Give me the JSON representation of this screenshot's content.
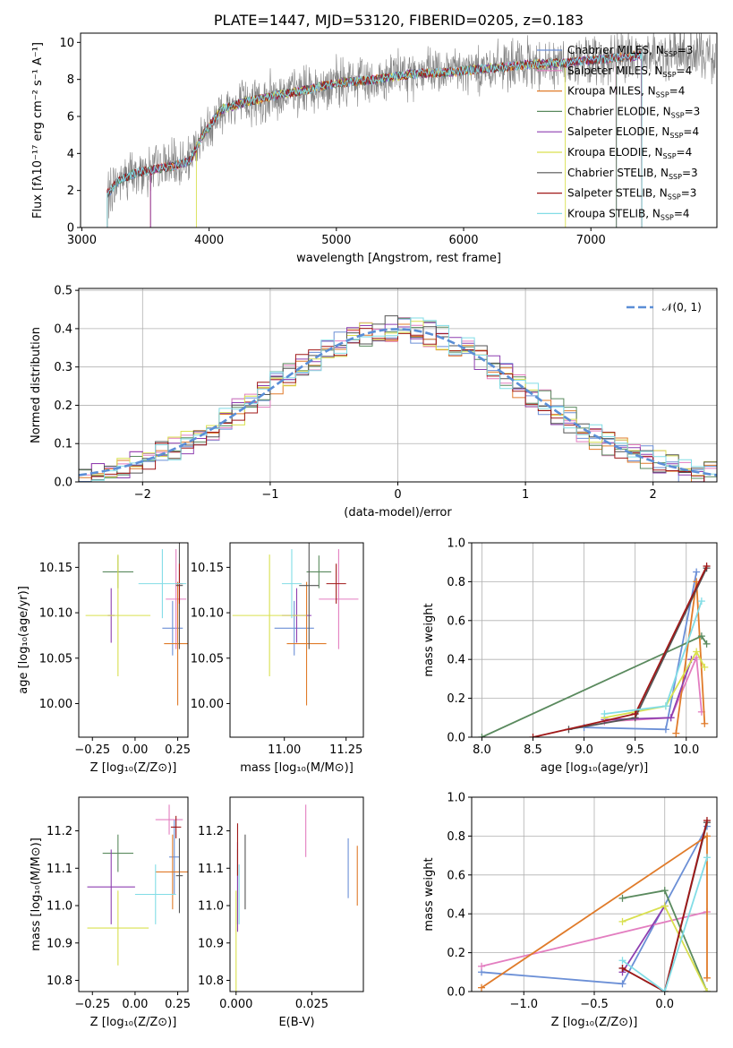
{
  "colors": {
    "c0": "#6b8fd6",
    "c1": "#e37ec0",
    "c2": "#e07b2a",
    "c3": "#5a8a5e",
    "c4": "#8e3fb0",
    "c5": "#d9e04f",
    "c6": "#555555",
    "c7": "#a01818",
    "c8": "#82dde6",
    "data": "#808080",
    "normal": "#5b8ed6"
  },
  "chart_data": [
    {
      "id": "spectrum",
      "type": "line",
      "title": "PLATE=1447, MJD=53120, FIBERID=0205, z=0.183",
      "xlabel": "wavelength [Angstrom, rest frame]",
      "ylabel": "Flux [fλ10⁻¹⁷ erg cm⁻² s⁻¹ A⁻¹]",
      "xlim": [
        2990,
        7990
      ],
      "ylim": [
        0,
        10.5
      ],
      "xticks": [
        3000,
        4000,
        5000,
        6000,
        7000
      ],
      "yticks": [
        0,
        2,
        4,
        6,
        8,
        10
      ],
      "legend_position": "top-right",
      "legend": [
        {
          "label": "Chabrier MILES, N",
          "sub": "SSP",
          "tail": "=3",
          "color": "c0"
        },
        {
          "label": "Salpeter MILES, N",
          "sub": "SSP",
          "tail": "=4",
          "color": "c1"
        },
        {
          "label": "Kroupa MILES, N",
          "sub": "SSP",
          "tail": "=4",
          "color": "c2"
        },
        {
          "label": "Chabrier ELODIE, N",
          "sub": "SSP",
          "tail": "=3",
          "color": "c3"
        },
        {
          "label": "Salpeter ELODIE, N",
          "sub": "SSP",
          "tail": "=4",
          "color": "c4"
        },
        {
          "label": "Kroupa ELODIE, N",
          "sub": "SSP",
          "tail": "=4",
          "color": "c5"
        },
        {
          "label": "Chabrier STELIB, N",
          "sub": "SSP",
          "tail": "=3",
          "color": "c6"
        },
        {
          "label": "Salpeter STELIB, N",
          "sub": "SSP",
          "tail": "=3",
          "color": "c7"
        },
        {
          "label": "Kroupa STELIB, N",
          "sub": "SSP",
          "tail": "=4",
          "color": "c8"
        }
      ],
      "continuum": [
        [
          3200,
          1.8
        ],
        [
          3300,
          2.6
        ],
        [
          3450,
          3.0
        ],
        [
          3550,
          3.1
        ],
        [
          3700,
          3.3
        ],
        [
          3850,
          3.6
        ],
        [
          3950,
          5.0
        ],
        [
          4100,
          6.4
        ],
        [
          4300,
          6.8
        ],
        [
          4500,
          7.1
        ],
        [
          4800,
          7.5
        ],
        [
          5000,
          7.8
        ],
        [
          5300,
          8.0
        ],
        [
          5600,
          8.3
        ],
        [
          5900,
          8.4
        ],
        [
          6200,
          8.6
        ],
        [
          6500,
          8.8
        ],
        [
          6800,
          8.9
        ],
        [
          7100,
          9.1
        ],
        [
          7400,
          9.3
        ]
      ],
      "data_noise": 1.1,
      "model_ranges": [
        [
          3200,
          7200
        ],
        [
          3540,
          7200
        ],
        [
          3540,
          7400
        ],
        [
          3200,
          7200
        ],
        [
          3540,
          7400
        ],
        [
          3900,
          6800
        ],
        [
          3200,
          7400
        ],
        [
          3200,
          7400
        ],
        [
          3200,
          7400
        ]
      ]
    },
    {
      "id": "residuals",
      "type": "histogram",
      "xlabel": "(data-model)/error",
      "ylabel": "Normed distribution",
      "xlim": [
        -2.5,
        2.5
      ],
      "ylim": [
        0,
        0.505
      ],
      "xticks": [
        -2,
        -1,
        0,
        1,
        2
      ],
      "yticks": [
        0.0,
        0.1,
        0.2,
        0.3,
        0.4,
        0.5
      ],
      "bin_width": 0.1,
      "grid": true,
      "legend_position": "top-right",
      "legend": [
        {
          "label": "𝒩(0, 1)",
          "color": "normal",
          "dashed": true
        }
      ],
      "series_colors": [
        "c0",
        "c1",
        "c2",
        "c3",
        "c4",
        "c5",
        "c6",
        "c7",
        "c8"
      ]
    },
    {
      "id": "age_vs_Z",
      "type": "scatter",
      "xlabel": "Z [log₁₀(Z/Z⊙)]",
      "ylabel": "age  [log₁₀(age/yr)]",
      "xlim": [
        -0.33,
        0.31
      ],
      "ylim": [
        9.963,
        10.177
      ],
      "xticks": [
        -0.25,
        0.0,
        0.25
      ],
      "yticks": [
        10.0,
        10.05,
        10.1,
        10.15
      ],
      "points": [
        {
          "x": 0.22,
          "y": 10.083,
          "xerr": 0.06,
          "yerr": 0.03,
          "color": "c0"
        },
        {
          "x": 0.24,
          "y": 10.115,
          "xerr": 0.06,
          "yerr": 0.055,
          "color": "c1"
        },
        {
          "x": 0.25,
          "y": 10.066,
          "xerr": 0.08,
          "yerr": 0.068,
          "color": "c2"
        },
        {
          "x": -0.1,
          "y": 10.145,
          "xerr": 0.09,
          "yerr": 0.018,
          "color": "c3"
        },
        {
          "x": -0.14,
          "y": 10.097,
          "xerr": 0.02,
          "yerr": 0.03,
          "color": "c4"
        },
        {
          "x": -0.1,
          "y": 10.097,
          "xerr": 0.19,
          "yerr": 0.067,
          "color": "c5"
        },
        {
          "x": 0.26,
          "y": 10.13,
          "xerr": 0.02,
          "yerr": 0.07,
          "color": "c6"
        },
        {
          "x": 0.26,
          "y": 10.132,
          "xerr": 0.02,
          "yerr": 0.022,
          "color": "c7"
        },
        {
          "x": 0.16,
          "y": 10.132,
          "xerr": 0.14,
          "yerr": 0.038,
          "color": "c8"
        }
      ]
    },
    {
      "id": "age_vs_mass",
      "type": "scatter",
      "xlabel": "mass [log₁₀(M/M⊙)]",
      "ylabel": "",
      "xlim": [
        10.78,
        11.32
      ],
      "ylim": [
        9.963,
        10.177
      ],
      "xticks": [
        11.0,
        11.25
      ],
      "yticks": [
        10.0,
        10.05,
        10.1,
        10.15
      ],
      "points": [
        {
          "x": 11.04,
          "y": 10.083,
          "xerr": 0.08,
          "yerr": 0.03,
          "color": "c0"
        },
        {
          "x": 11.22,
          "y": 10.115,
          "xerr": 0.08,
          "yerr": 0.055,
          "color": "c1"
        },
        {
          "x": 11.09,
          "y": 10.066,
          "xerr": 0.08,
          "yerr": 0.068,
          "color": "c2"
        },
        {
          "x": 11.14,
          "y": 10.145,
          "xerr": 0.05,
          "yerr": 0.018,
          "color": "c3"
        },
        {
          "x": 11.05,
          "y": 10.097,
          "xerr": 0.06,
          "yerr": 0.03,
          "color": "c4"
        },
        {
          "x": 10.94,
          "y": 10.097,
          "xerr": 0.15,
          "yerr": 0.067,
          "color": "c5"
        },
        {
          "x": 11.1,
          "y": 10.13,
          "xerr": 0.04,
          "yerr": 0.07,
          "color": "c6"
        },
        {
          "x": 11.21,
          "y": 10.132,
          "xerr": 0.04,
          "yerr": 0.022,
          "color": "c7"
        },
        {
          "x": 11.03,
          "y": 10.132,
          "xerr": 0.04,
          "yerr": 0.038,
          "color": "c8"
        }
      ]
    },
    {
      "id": "weight_vs_age",
      "type": "line",
      "xlabel": "age  [log₁₀(age/yr)]",
      "ylabel": "mass weight",
      "xlim": [
        7.9,
        10.3
      ],
      "ylim": [
        0,
        1
      ],
      "xticks": [
        8.0,
        8.5,
        9.0,
        9.5,
        10.0
      ],
      "yticks": [
        0.0,
        0.2,
        0.4,
        0.6,
        0.8,
        1.0
      ],
      "grid": true,
      "series": [
        {
          "color": "c0",
          "points": [
            [
              9.0,
              0.05
            ],
            [
              9.8,
              0.04
            ],
            [
              10.1,
              0.85
            ]
          ]
        },
        {
          "color": "c1",
          "points": [
            [
              9.2,
              0.08
            ],
            [
              9.85,
              0.1
            ],
            [
              10.1,
              0.41
            ],
            [
              10.15,
              0.13
            ]
          ]
        },
        {
          "color": "c2",
          "points": [
            [
              9.9,
              0.02
            ],
            [
              10.1,
              0.8
            ],
            [
              10.18,
              0.07
            ]
          ]
        },
        {
          "color": "c3",
          "points": [
            [
              8.0,
              0.0
            ],
            [
              10.15,
              0.52
            ],
            [
              10.2,
              0.48
            ]
          ]
        },
        {
          "color": "c4",
          "points": [
            [
              9.2,
              0.09
            ],
            [
              9.85,
              0.1
            ],
            [
              10.05,
              0.4
            ]
          ]
        },
        {
          "color": "c5",
          "points": [
            [
              9.2,
              0.1
            ],
            [
              9.8,
              0.16
            ],
            [
              10.1,
              0.44
            ],
            [
              10.18,
              0.36
            ]
          ]
        },
        {
          "color": "c6",
          "points": [
            [
              8.85,
              0.04
            ],
            [
              9.5,
              0.1
            ],
            [
              10.2,
              0.87
            ]
          ]
        },
        {
          "color": "c7",
          "points": [
            [
              8.5,
              0.0
            ],
            [
              9.5,
              0.12
            ],
            [
              10.2,
              0.88
            ]
          ]
        },
        {
          "color": "c8",
          "points": [
            [
              9.2,
              0.12
            ],
            [
              9.8,
              0.16
            ],
            [
              10.15,
              0.7
            ]
          ]
        }
      ]
    },
    {
      "id": "mass_vs_Z",
      "type": "scatter",
      "xlabel": "Z [log₁₀(Z/Z⊙)]",
      "ylabel": "mass [log₁₀(M/M⊙)]",
      "xlim": [
        -0.33,
        0.31
      ],
      "ylim": [
        10.77,
        11.29
      ],
      "xticks": [
        -0.25,
        0.0,
        0.25
      ],
      "yticks": [
        10.8,
        10.9,
        11.0,
        11.1,
        11.2
      ],
      "points": [
        {
          "x": 0.23,
          "y": 11.13,
          "xerr": 0.03,
          "yerr": 0.1,
          "color": "c0"
        },
        {
          "x": 0.2,
          "y": 11.23,
          "xerr": 0.08,
          "yerr": 0.04,
          "color": "c1"
        },
        {
          "x": 0.22,
          "y": 11.09,
          "xerr": 0.1,
          "yerr": 0.1,
          "color": "c2"
        },
        {
          "x": -0.1,
          "y": 11.14,
          "xerr": 0.09,
          "yerr": 0.05,
          "color": "c3"
        },
        {
          "x": -0.14,
          "y": 11.05,
          "xerr": 0.14,
          "yerr": 0.1,
          "color": "c4"
        },
        {
          "x": -0.1,
          "y": 10.94,
          "xerr": 0.18,
          "yerr": 0.1,
          "color": "c5"
        },
        {
          "x": 0.26,
          "y": 11.08,
          "xerr": 0.02,
          "yerr": 0.1,
          "color": "c6"
        },
        {
          "x": 0.24,
          "y": 11.21,
          "xerr": 0.03,
          "yerr": 0.03,
          "color": "c7"
        },
        {
          "x": 0.12,
          "y": 11.03,
          "xerr": 0.12,
          "yerr": 0.08,
          "color": "c8"
        }
      ]
    },
    {
      "id": "mass_vs_ebv",
      "type": "scatter",
      "xlabel": "E(B-V)",
      "ylabel": "",
      "xlim": [
        -0.002,
        0.042
      ],
      "ylim": [
        10.77,
        11.29
      ],
      "xticks": [
        0.0,
        0.025
      ],
      "yticks": [
        10.8,
        10.9,
        11.0,
        11.1,
        11.2
      ],
      "points": [
        {
          "x": 0.037,
          "y": 11.1,
          "xerr": 0,
          "yerr": 0.08,
          "color": "c0"
        },
        {
          "x": 0.023,
          "y": 11.2,
          "xerr": 0,
          "yerr": 0.07,
          "color": "c1"
        },
        {
          "x": 0.04,
          "y": 11.08,
          "xerr": 0,
          "yerr": 0.08,
          "color": "c2"
        },
        {
          "x": 0.0005,
          "y": 11.05,
          "xerr": 0,
          "yerr": 0.1,
          "color": "c3"
        },
        {
          "x": 0.0005,
          "y": 11.05,
          "xerr": 0,
          "yerr": 0.12,
          "color": "c4"
        },
        {
          "x": 0.0,
          "y": 10.9,
          "xerr": 0,
          "yerr": 0.14,
          "color": "c5"
        },
        {
          "x": 0.003,
          "y": 11.09,
          "xerr": 0,
          "yerr": 0.1,
          "color": "c6"
        },
        {
          "x": 0.0005,
          "y": 11.15,
          "xerr": 0,
          "yerr": 0.07,
          "color": "c7"
        },
        {
          "x": 0.001,
          "y": 11.03,
          "xerr": 0,
          "yerr": 0.08,
          "color": "c8"
        }
      ]
    },
    {
      "id": "weight_vs_Z",
      "type": "line",
      "xlabel": "Z [log₁₀(Z/Z⊙)]",
      "ylabel": "mass weight",
      "xlim": [
        -1.37,
        0.37
      ],
      "ylim": [
        0,
        1
      ],
      "xticks": [
        -1.0,
        -0.5,
        0.0
      ],
      "yticks": [
        0.0,
        0.2,
        0.4,
        0.6,
        0.8,
        1.0
      ],
      "grid": true,
      "series": [
        {
          "color": "c0",
          "points": [
            [
              -1.3,
              0.1
            ],
            [
              -0.3,
              0.04
            ],
            [
              0.3,
              0.85
            ]
          ]
        },
        {
          "color": "c1",
          "points": [
            [
              -1.3,
              0.13
            ],
            [
              0.3,
              0.41
            ]
          ]
        },
        {
          "color": "c2",
          "points": [
            [
              -1.3,
              0.02
            ],
            [
              0.3,
              0.8
            ],
            [
              0.3,
              0.07
            ]
          ]
        },
        {
          "color": "c3",
          "points": [
            [
              -0.3,
              0.48
            ],
            [
              0.0,
              0.52
            ],
            [
              0.3,
              0.0
            ]
          ]
        },
        {
          "color": "c4",
          "points": [
            [
              -0.3,
              0.1
            ],
            [
              0.0,
              0.44
            ]
          ]
        },
        {
          "color": "c5",
          "points": [
            [
              -0.3,
              0.36
            ],
            [
              0.0,
              0.44
            ],
            [
              0.3,
              0.0
            ]
          ]
        },
        {
          "color": "c6",
          "points": [
            [
              -0.3,
              0.12
            ],
            [
              0.0,
              0.0
            ],
            [
              0.3,
              0.87
            ]
          ]
        },
        {
          "color": "c7",
          "points": [
            [
              -0.3,
              0.12
            ],
            [
              0.0,
              0.0
            ],
            [
              0.3,
              0.88
            ]
          ]
        },
        {
          "color": "c8",
          "points": [
            [
              -0.3,
              0.16
            ],
            [
              0.0,
              0.0
            ],
            [
              0.3,
              0.69
            ]
          ]
        }
      ]
    }
  ]
}
